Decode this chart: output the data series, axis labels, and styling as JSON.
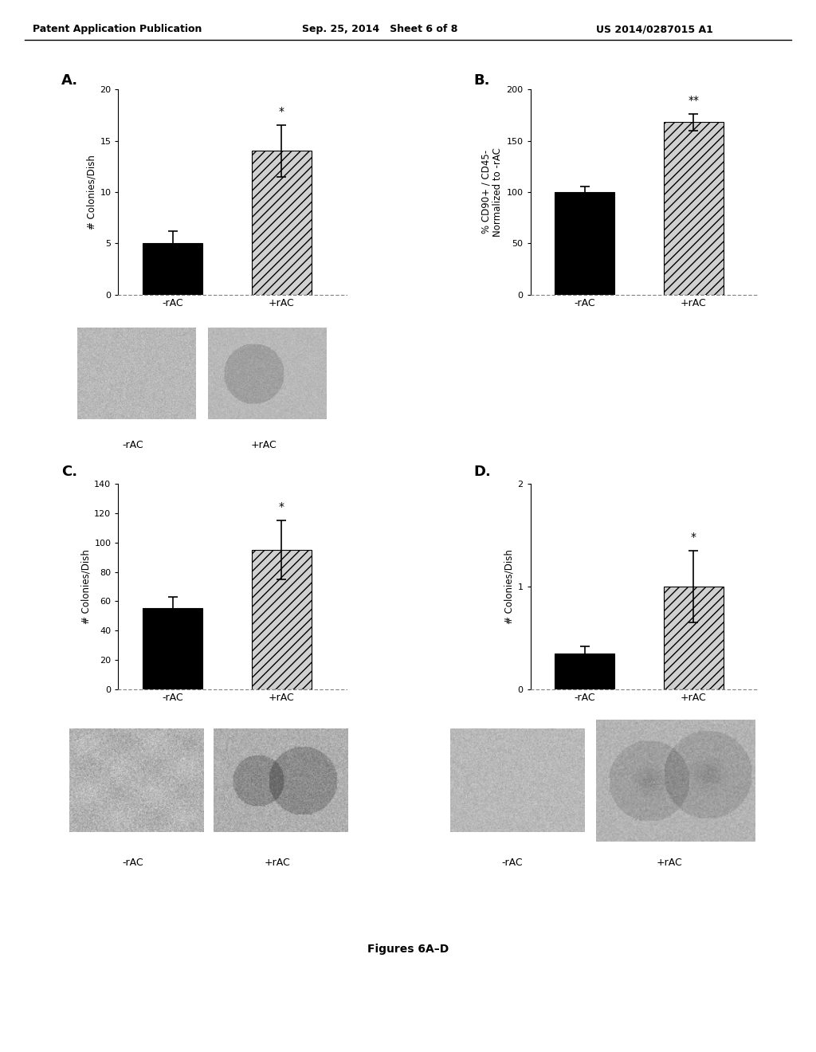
{
  "header_left": "Patent Application Publication",
  "header_center": "Sep. 25, 2014   Sheet 6 of 8",
  "header_right": "US 2014/0287015 A1",
  "figure_caption": "Figures 6A–D",
  "panel_A": {
    "label": "A.",
    "categories": [
      "-rAC",
      "+rAC"
    ],
    "values": [
      5,
      14
    ],
    "errors": [
      1.2,
      2.5
    ],
    "ylabel": "# Colonies/Dish",
    "ylim": [
      0,
      20
    ],
    "yticks": [
      0,
      5,
      10,
      15,
      20
    ],
    "bar_colors": [
      "#000000",
      "#c8c8c8"
    ],
    "significance": [
      "",
      "*"
    ],
    "bar_hatches": [
      null,
      "///"
    ]
  },
  "panel_B": {
    "label": "B.",
    "categories": [
      "-rAC",
      "+rAC"
    ],
    "values": [
      100,
      168
    ],
    "errors": [
      5,
      8
    ],
    "ylabel": "% CD90+ / CD45-\nNormalized to -rAC",
    "ylim": [
      0,
      200
    ],
    "yticks": [
      0,
      50,
      100,
      150,
      200
    ],
    "bar_colors": [
      "#000000",
      "#c8c8c8"
    ],
    "significance": [
      "",
      "**"
    ],
    "bar_hatches": [
      null,
      "///"
    ]
  },
  "panel_C": {
    "label": "C.",
    "categories": [
      "-rAC",
      "+rAC"
    ],
    "values": [
      55,
      95
    ],
    "errors": [
      8,
      20
    ],
    "ylabel": "# Colonies/Dish",
    "ylim": [
      0,
      140
    ],
    "yticks": [
      0,
      20,
      40,
      60,
      80,
      100,
      120,
      140
    ],
    "bar_colors": [
      "#000000",
      "#c8c8c8"
    ],
    "significance": [
      "",
      "*"
    ],
    "bar_hatches": [
      null,
      "///"
    ]
  },
  "panel_D": {
    "label": "D.",
    "categories": [
      "-rAC",
      "+rAC"
    ],
    "values": [
      0.35,
      1.0
    ],
    "errors": [
      0.07,
      0.35
    ],
    "ylabel": "# Colonies/Dish",
    "ylim": [
      0,
      2
    ],
    "yticks": [
      0,
      1,
      2
    ],
    "ytick_labels": [
      "0",
      "1",
      "2"
    ],
    "bar_colors": [
      "#000000",
      "#c8c8c8"
    ],
    "significance": [
      "",
      "*"
    ],
    "bar_hatches": [
      null,
      "///"
    ]
  },
  "bg_color": "#ffffff",
  "text_color": "#000000",
  "font_size": 9,
  "header_font_size": 9
}
